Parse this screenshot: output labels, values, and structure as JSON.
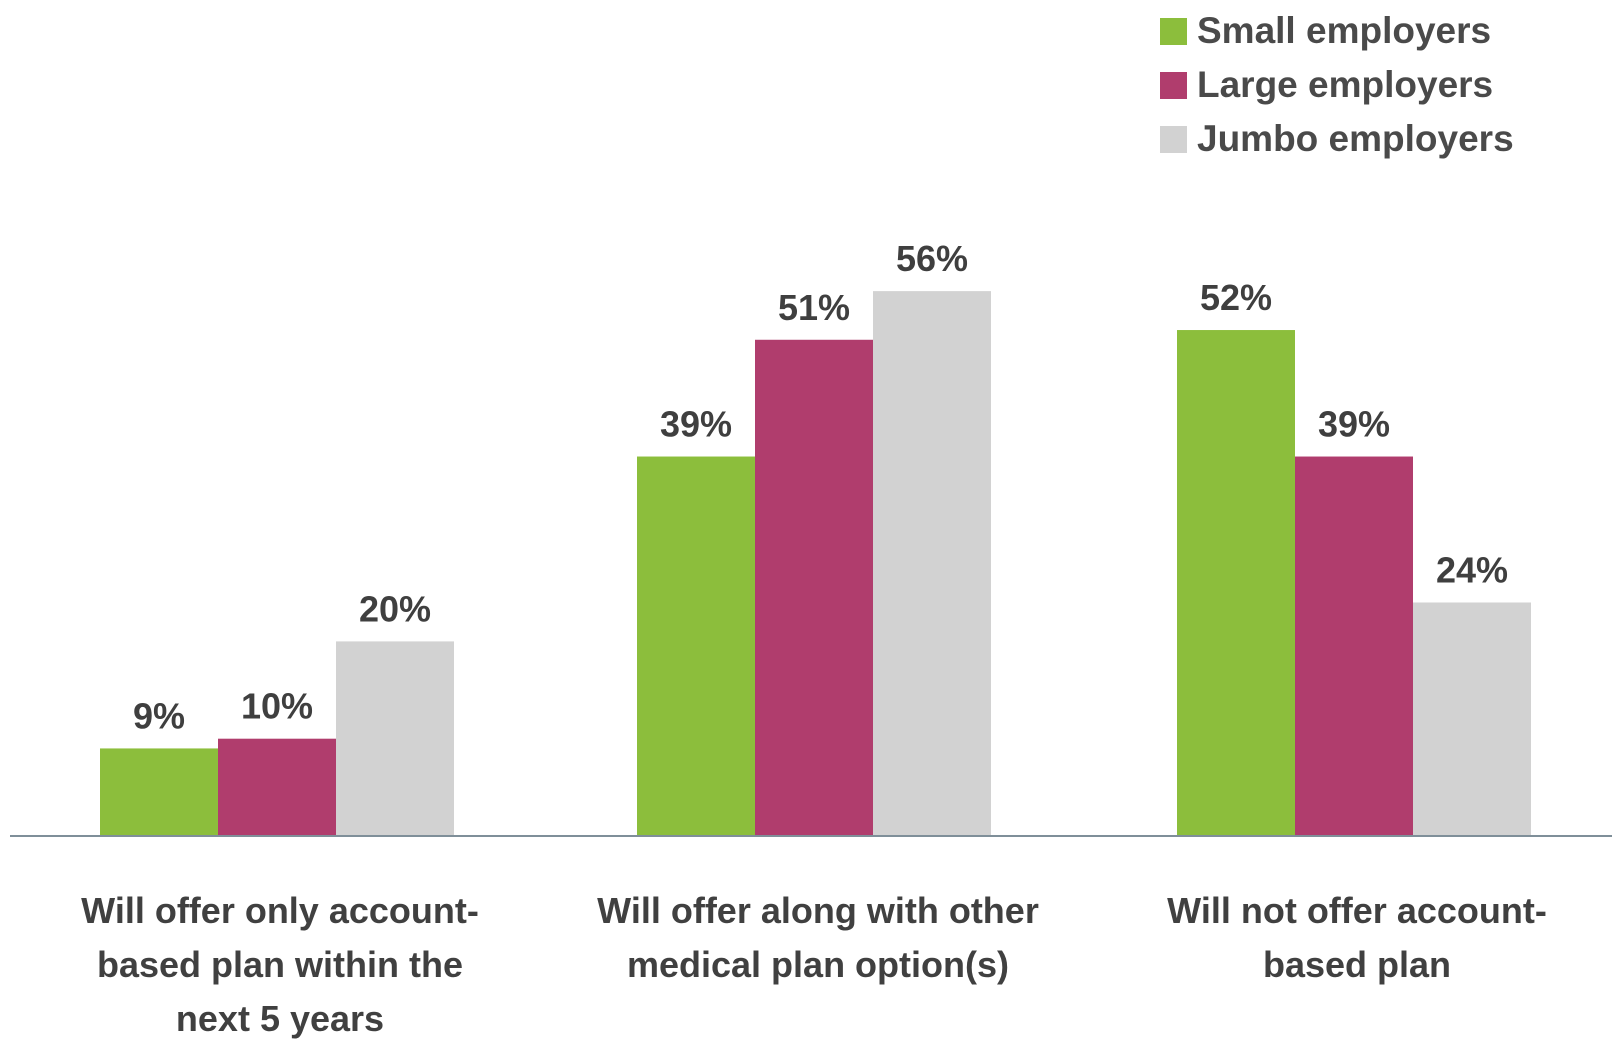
{
  "chart_data": {
    "type": "bar",
    "categories": [
      "Will offer only account-based plan within the next 5 years",
      "Will offer along with other medical plan option(s)",
      "Will not offer account-based plan"
    ],
    "category_lines": [
      [
        "Will offer only account-",
        "based plan within the",
        "next 5 years"
      ],
      [
        "Will offer along with other",
        "medical plan option(s)"
      ],
      [
        "Will not offer account-",
        "based plan"
      ]
    ],
    "series": [
      {
        "name": "Small employers",
        "values": [
          9,
          39,
          52
        ],
        "color": "#8cbe3c"
      },
      {
        "name": "Large employers",
        "values": [
          10,
          51,
          39
        ],
        "color": "#b03d6d"
      },
      {
        "name": "Jumbo employers",
        "values": [
          20,
          56,
          24
        ],
        "color": "#d2d2d2"
      }
    ],
    "value_suffix": "%",
    "ylim": [
      0,
      60
    ],
    "legend_position": "top-right",
    "grid": false,
    "title": "",
    "xlabel": "",
    "ylabel": ""
  }
}
